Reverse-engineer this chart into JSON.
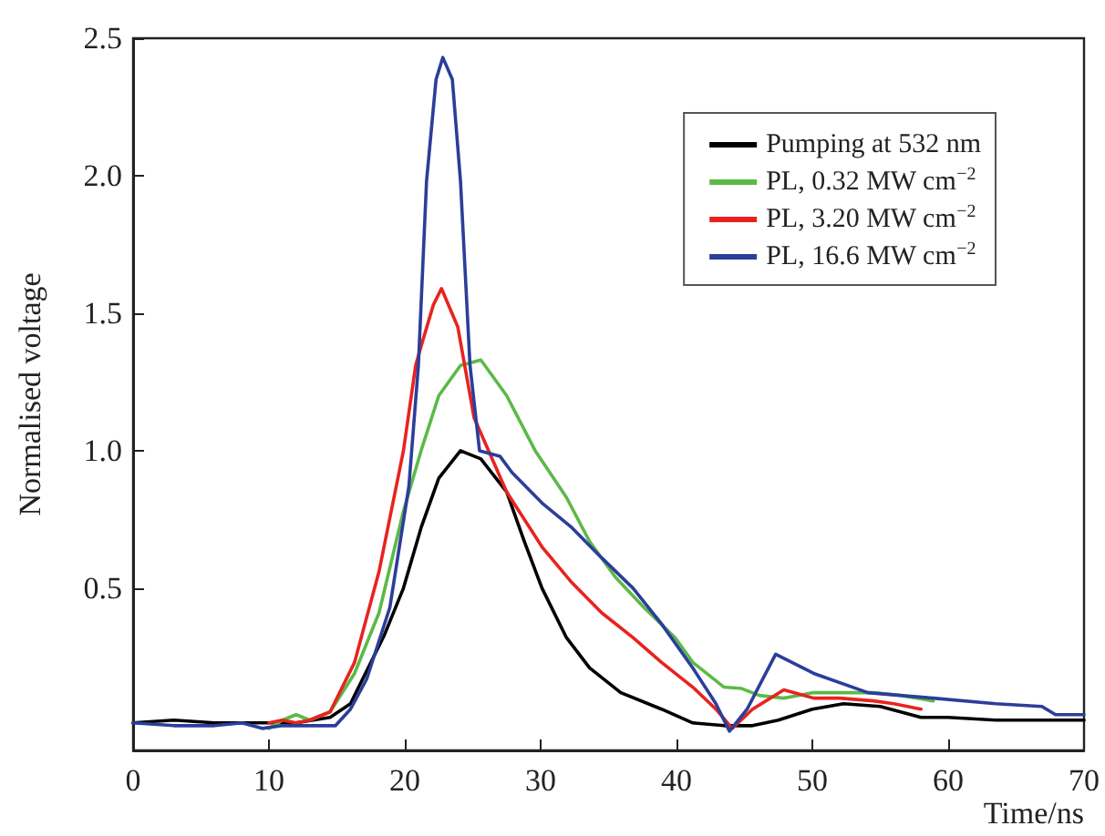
{
  "chart_data": {
    "type": "line",
    "xlabel": "Time/ns",
    "ylabel": "Normalised voltage",
    "xlim": [
      0,
      70
    ],
    "xticks": [
      0,
      10,
      20,
      30,
      40,
      50,
      60,
      70
    ],
    "ylim": [
      -0.09,
      2.5
    ],
    "yticks": [
      {
        "value": 0.5,
        "label": "0.5"
      },
      {
        "value": 1,
        "label": "1.0"
      },
      {
        "value": 1.5,
        "label": "1.5"
      },
      {
        "value": 2,
        "label": "2.0"
      },
      {
        "value": 2.5,
        "label": "2.5"
      }
    ],
    "grid": false,
    "legend": "top right",
    "marker": "none",
    "line_style": "solid",
    "series": [
      {
        "name": "Pumping at 532 nm",
        "color": "#000000",
        "x": [
          0,
          3,
          6,
          9,
          12,
          14.5,
          16,
          17.2,
          18.5,
          19.9,
          21.2,
          22.5,
          24.1,
          25.6,
          27.5,
          28.8,
          30.1,
          31.9,
          33.6,
          35.9,
          38.9,
          41.2,
          43.5,
          45.6,
          47.5,
          50,
          52.3,
          55,
          58,
          60,
          63.5,
          66,
          69.6,
          70
        ],
        "values": [
          0.01,
          0.02,
          0.01,
          0.01,
          0.01,
          0.03,
          0.08,
          0.2,
          0.33,
          0.5,
          0.72,
          0.9,
          1.0,
          0.97,
          0.85,
          0.67,
          0.5,
          0.32,
          0.21,
          0.12,
          0.06,
          0.01,
          0.0,
          0.0,
          0.02,
          0.06,
          0.08,
          0.07,
          0.03,
          0.03,
          0.02,
          0.02,
          0.02,
          0.02
        ]
      },
      {
        "name": "PL, 0.32 MW cm$^{−2}$",
        "color": "#5cb947",
        "x": [
          10,
          11,
          12,
          13,
          14.5,
          16.3,
          18.1,
          19.9,
          21.2,
          22.5,
          24.1,
          25.6,
          27.5,
          29.6,
          31.9,
          33.6,
          35.5,
          37.6,
          39.9,
          41.2,
          43.5,
          44.8,
          46.1,
          47.9,
          50.1,
          52,
          54.5,
          56.5,
          58.9
        ],
        "values": [
          -0.01,
          0.02,
          0.04,
          0.02,
          0.05,
          0.19,
          0.41,
          0.78,
          1.0,
          1.2,
          1.31,
          1.33,
          1.2,
          1.0,
          0.83,
          0.67,
          0.54,
          0.43,
          0.32,
          0.23,
          0.14,
          0.135,
          0.11,
          0.1,
          0.12,
          0.12,
          0.12,
          0.11,
          0.09
        ]
      },
      {
        "name": "PL, 3.20 MW cm$^{−2}$",
        "color": "#e8231f",
        "x": [
          10,
          11,
          12,
          13,
          14.5,
          16.3,
          18.1,
          19.9,
          20.8,
          21.2,
          22.1,
          22.7,
          23.9,
          25.1,
          27.5,
          30.1,
          32.3,
          34.5,
          36.8,
          38.9,
          41.2,
          42.9,
          44.1,
          45.6,
          47.9,
          50.1,
          52,
          54.5,
          56,
          58
        ],
        "values": [
          0.01,
          0.02,
          0.01,
          0.02,
          0.05,
          0.23,
          0.56,
          1.0,
          1.31,
          1.38,
          1.53,
          1.59,
          1.45,
          1.12,
          0.85,
          0.65,
          0.52,
          0.41,
          0.32,
          0.23,
          0.14,
          0.06,
          -0.01,
          0.06,
          0.13,
          0.1,
          0.1,
          0.09,
          0.08,
          0.06
        ]
      },
      {
        "name": "PL, 16.6 MW cm$^{−2}$",
        "color": "#2b3e9a",
        "x": [
          0,
          3,
          6,
          8,
          9.5,
          11,
          13,
          14.9,
          16,
          17.2,
          18.9,
          20.3,
          21,
          21.6,
          22.3,
          22.8,
          23.5,
          24.1,
          24.8,
          25.5,
          27,
          27.9,
          30.1,
          32.3,
          34.5,
          36.8,
          38.9,
          41.2,
          42.9,
          43.9,
          45.2,
          47.3,
          50.1,
          54.1,
          58.9,
          63.5,
          66.9,
          67.9,
          69.6,
          70
        ],
        "values": [
          0.01,
          0.0,
          0.0,
          0.01,
          -0.01,
          0.0,
          0.0,
          0.0,
          0.06,
          0.17,
          0.43,
          0.87,
          1.31,
          1.98,
          2.35,
          2.43,
          2.35,
          1.98,
          1.31,
          1.0,
          0.98,
          0.92,
          0.81,
          0.72,
          0.61,
          0.5,
          0.37,
          0.21,
          0.08,
          -0.02,
          0.06,
          0.26,
          0.19,
          0.12,
          0.1,
          0.08,
          0.07,
          0.04,
          0.04,
          0.04
        ]
      }
    ]
  }
}
